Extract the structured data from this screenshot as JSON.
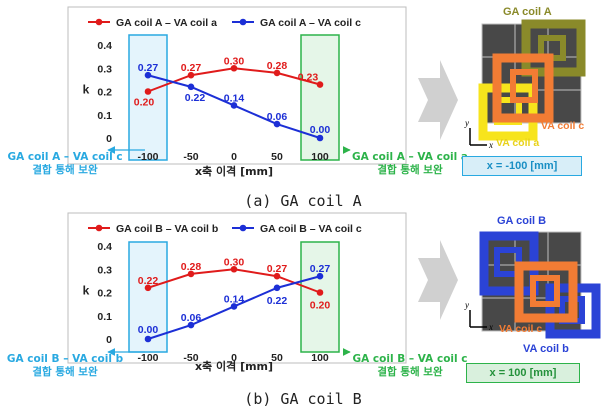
{
  "chart_data": [
    {
      "type": "line",
      "x": [
        -100,
        -50,
        0,
        50,
        100
      ],
      "series": [
        {
          "name": "GA coil A – VA coil a",
          "color": "#e01b1b",
          "values": [
            0.2,
            0.27,
            0.3,
            0.28,
            0.23
          ]
        },
        {
          "name": "GA coil A – VA coil c",
          "color": "#1c2fd6",
          "values": [
            0.27,
            0.22,
            0.14,
            0.06,
            0.0
          ]
        }
      ],
      "data_labels": [
        [
          "0.20",
          "0.27",
          "0.30",
          "0.28",
          "0.23"
        ],
        [
          "0.27",
          "0.22",
          "0.14",
          "0.06",
          "0.00"
        ]
      ],
      "xticks": [
        "-100",
        "-50",
        "0",
        "50",
        "100"
      ],
      "yticks": [
        "0",
        "0.1",
        "0.2",
        "0.3",
        "0.4"
      ],
      "ylim": [
        0,
        0.4
      ],
      "xlim": [
        -100,
        100
      ],
      "ylabel": "k",
      "xlabel": "x축 이격 [mm]",
      "legend_position": "top",
      "highlight_left": {
        "x": -100,
        "text1": "GA coil A – VA coil c",
        "text2": "결합 통해 보완",
        "color": "#29a9e1"
      },
      "highlight_right": {
        "x": 100,
        "text1": "GA coil A – VA coil a",
        "text2": "결합 통해 보완",
        "color": "#2db34a"
      }
    },
    {
      "type": "line",
      "x": [
        -100,
        -50,
        0,
        50,
        100
      ],
      "series": [
        {
          "name": "GA coil B – VA coil b",
          "color": "#e01b1b",
          "values": [
            0.22,
            0.28,
            0.3,
            0.27,
            0.2
          ]
        },
        {
          "name": "GA coil B – VA coil c",
          "color": "#1c2fd6",
          "values": [
            0.0,
            0.06,
            0.14,
            0.22,
            0.27
          ]
        }
      ],
      "data_labels": [
        [
          "0.22",
          "0.28",
          "0.30",
          "0.27",
          "0.20"
        ],
        [
          "0.00",
          "0.06",
          "0.14",
          "0.22",
          "0.27"
        ]
      ],
      "xticks": [
        "-100",
        "-50",
        "0",
        "50",
        "100"
      ],
      "yticks": [
        "0",
        "0.1",
        "0.2",
        "0.3",
        "0.4"
      ],
      "ylim": [
        0,
        0.4
      ],
      "xlim": [
        -100,
        100
      ],
      "ylabel": "k",
      "xlabel": "x축 이격 [mm]",
      "legend_position": "top",
      "highlight_left": {
        "x": -100,
        "text1": "GA coil B – VA coil b",
        "text2": "결합 통해 보완",
        "color": "#29a9e1"
      },
      "highlight_right": {
        "x": 100,
        "text1": "GA coil B – VA coil c",
        "text2": "결합 통해 보완",
        "color": "#2db34a"
      }
    }
  ],
  "captions": [
    "(a) GA coil A",
    "(b) GA coil B"
  ],
  "coil_a": {
    "ga_label": "GA coil A",
    "va_c_label": "VA coil c",
    "va_a_label": "VA coil a",
    "offset_label": "x = -100 [mm]",
    "y_axis": "y",
    "x_axis": "x"
  },
  "coil_b": {
    "ga_label": "GA coil B",
    "va_c_label": "VA coil c",
    "va_b_label": "VA coil b",
    "offset_label": "x = 100 [mm]",
    "y_axis": "y",
    "x_axis": "x"
  },
  "colors": {
    "grid_tile": "#4a4a4a",
    "coil_ga_a": "#7a7a22",
    "coil_ga_b": "#2b43d6",
    "coil_va_c": "#f07a32",
    "coil_va_a": "#f4e21d",
    "coil_va_b": "#2b43d6",
    "badge_a_fill": "#d8eef8",
    "badge_a_border": "#29a9e1",
    "badge_b_fill": "#d9f0dd",
    "badge_b_border": "#2db34a",
    "arrow": "#c0c0c0"
  }
}
